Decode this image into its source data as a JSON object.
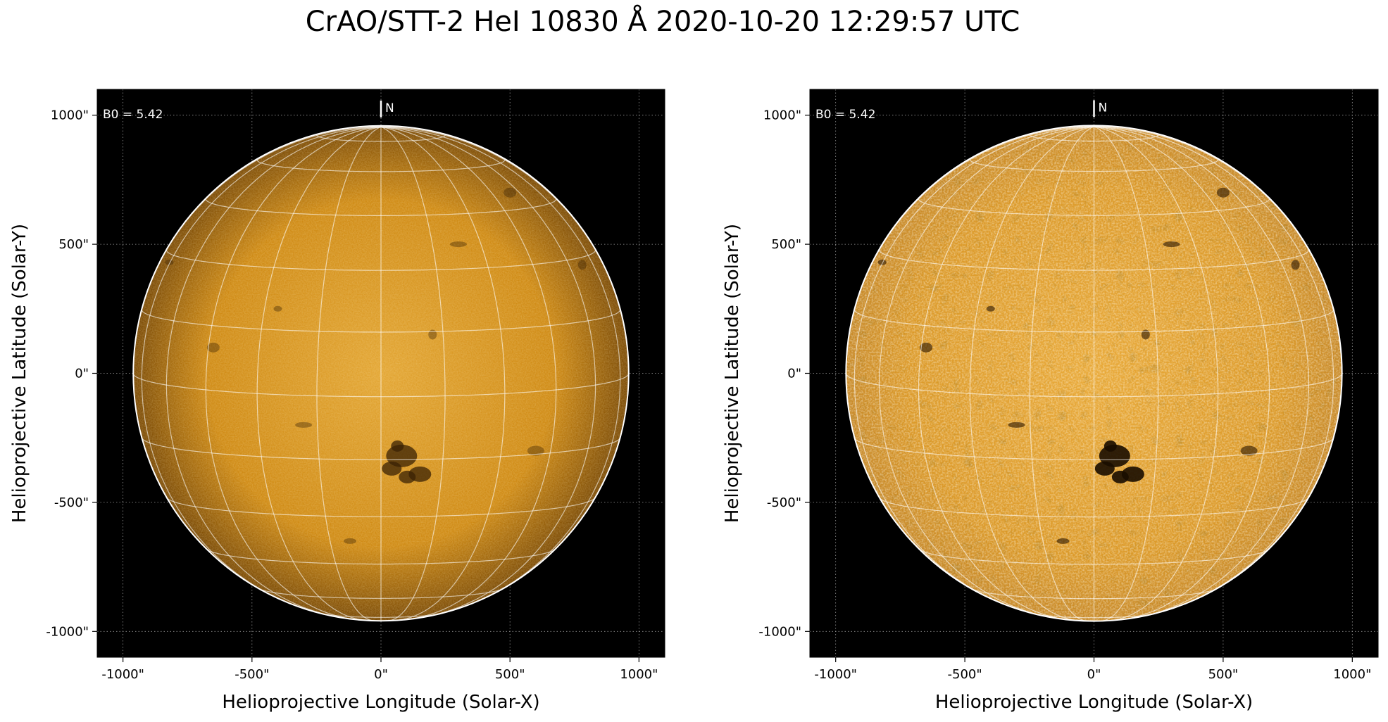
{
  "figure": {
    "title": "CrAO/STT-2 HeI 10830 Å 2020-10-20 12:29:57 UTC"
  },
  "axes": {
    "xlabel": "Helioprojective Longitude (Solar-X)",
    "ylabel": "Helioprojective Latitude (Solar-Y)",
    "tick_labels": [
      "-1000\"",
      "-500\"",
      "0\"",
      "500\"",
      "1000\""
    ],
    "tick_values": [
      -1000,
      -500,
      0,
      500,
      1000
    ],
    "xlim": [
      -1100,
      1100
    ],
    "ylim": [
      -1100,
      1100
    ]
  },
  "panels": [
    {
      "b0_label": "B0 = 5.42",
      "north_label": "N",
      "disk_colors": {
        "center": "#e3a634",
        "mid": "#cf8a14",
        "limb": "#7a4a06"
      },
      "processing": "smooth"
    },
    {
      "b0_label": "B0 = 5.42",
      "north_label": "N",
      "disk_colors": {
        "center": "#e9aa3a",
        "mid": "#dc9a2a",
        "limb": "#c88a2a"
      },
      "processing": "enhanced"
    }
  ],
  "sun": {
    "radius_arcsec": 960,
    "b0_deg": 5.42,
    "grid_spacing_deg": 15,
    "active_region": {
      "x": 80,
      "y": -320
    }
  }
}
